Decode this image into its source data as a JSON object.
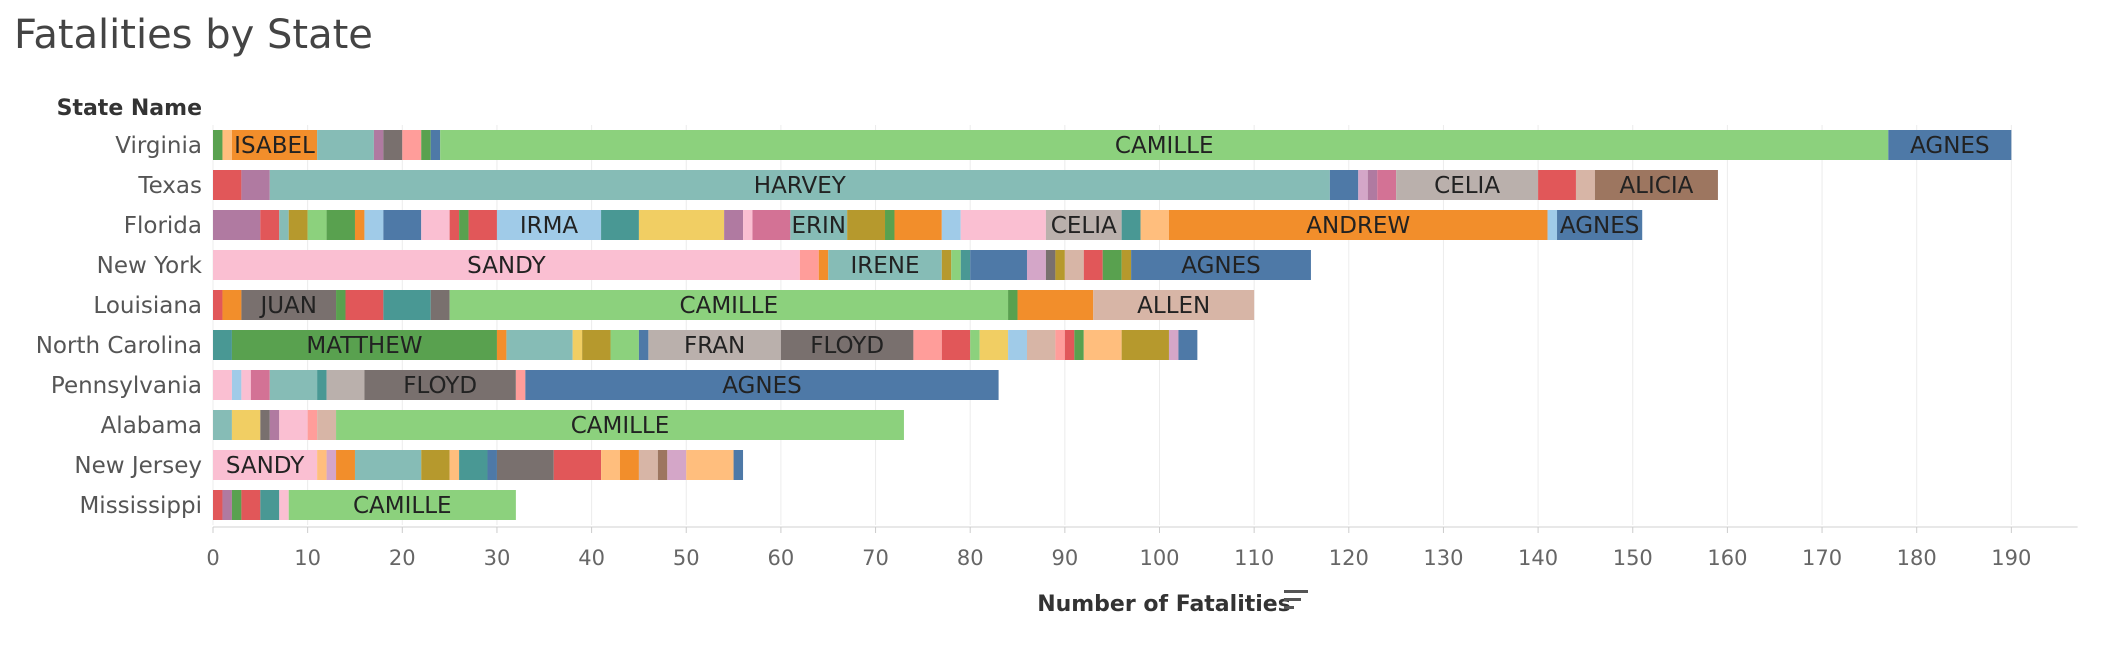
{
  "title": "Fatalities by State",
  "chart_data": {
    "type": "bar",
    "orientation": "horizontal",
    "stacked": true,
    "title": "Fatalities by State",
    "row_header": "State Name",
    "xlabel": "Number of Fatalities",
    "xlim": [
      0,
      197
    ],
    "xticks": [
      0,
      10,
      20,
      30,
      40,
      50,
      60,
      70,
      80,
      90,
      100,
      110,
      120,
      130,
      140,
      150,
      160,
      170,
      180,
      190
    ],
    "grid": true,
    "sort_icon": "sort-descending-icon",
    "rows": [
      {
        "state": "Virginia",
        "segments": [
          {
            "v": 1,
            "c": "#59a14f"
          },
          {
            "v": 1,
            "c": "#ffbe7d"
          },
          {
            "v": 9,
            "c": "#f28e2b",
            "label": "ISABEL"
          },
          {
            "v": 6,
            "c": "#86bcb6"
          },
          {
            "v": 1,
            "c": "#b07aa1"
          },
          {
            "v": 2,
            "c": "#79706e"
          },
          {
            "v": 2,
            "c": "#ff9d9a"
          },
          {
            "v": 1,
            "c": "#59a14f"
          },
          {
            "v": 1,
            "c": "#4e79a7"
          },
          {
            "v": 153,
            "c": "#8cd17d",
            "label": "CAMILLE"
          },
          {
            "v": 13,
            "c": "#4e79a7",
            "label": "AGNES"
          }
        ]
      },
      {
        "state": "Texas",
        "segments": [
          {
            "v": 3,
            "c": "#e15759"
          },
          {
            "v": 3,
            "c": "#b07aa1"
          },
          {
            "v": 112,
            "c": "#86bcb6",
            "label": "HARVEY"
          },
          {
            "v": 3,
            "c": "#4e79a7"
          },
          {
            "v": 1,
            "c": "#d4a6c8"
          },
          {
            "v": 1,
            "c": "#b07aa1"
          },
          {
            "v": 2,
            "c": "#d37295"
          },
          {
            "v": 15,
            "c": "#bab0ac",
            "label": "CELIA"
          },
          {
            "v": 4,
            "c": "#e15759"
          },
          {
            "v": 2,
            "c": "#d7b5a6"
          },
          {
            "v": 13,
            "c": "#9d7660",
            "label": "ALICIA"
          }
        ]
      },
      {
        "state": "Florida",
        "segments": [
          {
            "v": 5,
            "c": "#b07aa1"
          },
          {
            "v": 2,
            "c": "#e15759"
          },
          {
            "v": 1,
            "c": "#86bcb6"
          },
          {
            "v": 2,
            "c": "#b6992d"
          },
          {
            "v": 2,
            "c": "#8cd17d"
          },
          {
            "v": 3,
            "c": "#59a14f"
          },
          {
            "v": 1,
            "c": "#f28e2b"
          },
          {
            "v": 2,
            "c": "#a0cbe8"
          },
          {
            "v": 4,
            "c": "#4e79a7"
          },
          {
            "v": 3,
            "c": "#fabfd2"
          },
          {
            "v": 1,
            "c": "#e15759"
          },
          {
            "v": 1,
            "c": "#59a14f"
          },
          {
            "v": 3,
            "c": "#e15759"
          },
          {
            "v": 11,
            "c": "#a0cbe8",
            "label": "IRMA"
          },
          {
            "v": 4,
            "c": "#499894"
          },
          {
            "v": 9,
            "c": "#f1ce63"
          },
          {
            "v": 2,
            "c": "#b07aa1"
          },
          {
            "v": 1,
            "c": "#fabfd2"
          },
          {
            "v": 4,
            "c": "#d37295"
          },
          {
            "v": 6,
            "c": "#86bcb6",
            "label": "ERIN"
          },
          {
            "v": 4,
            "c": "#b6992d"
          },
          {
            "v": 1,
            "c": "#59a14f"
          },
          {
            "v": 5,
            "c": "#f28e2b"
          },
          {
            "v": 2,
            "c": "#a0cbe8"
          },
          {
            "v": 9,
            "c": "#fabfd2"
          },
          {
            "v": 8,
            "c": "#bab0ac",
            "label": "CELIA"
          },
          {
            "v": 2,
            "c": "#499894"
          },
          {
            "v": 3,
            "c": "#ffbe7d"
          },
          {
            "v": 40,
            "c": "#f28e2b",
            "label": "ANDREW"
          },
          {
            "v": 1,
            "c": "#a0cbe8"
          },
          {
            "v": 9,
            "c": "#4e79a7",
            "label": "AGNES"
          }
        ]
      },
      {
        "state": "New York",
        "segments": [
          {
            "v": 62,
            "c": "#fabfd2",
            "label": "SANDY"
          },
          {
            "v": 2,
            "c": "#ff9d9a"
          },
          {
            "v": 1,
            "c": "#f28e2b"
          },
          {
            "v": 12,
            "c": "#86bcb6",
            "label": "IRENE"
          },
          {
            "v": 1,
            "c": "#b6992d"
          },
          {
            "v": 1,
            "c": "#8cd17d"
          },
          {
            "v": 1,
            "c": "#499894"
          },
          {
            "v": 6,
            "c": "#4e79a7"
          },
          {
            "v": 2,
            "c": "#d4a6c8"
          },
          {
            "v": 1,
            "c": "#79706e"
          },
          {
            "v": 1,
            "c": "#b6992d"
          },
          {
            "v": 2,
            "c": "#d7b5a6"
          },
          {
            "v": 2,
            "c": "#e15759"
          },
          {
            "v": 2,
            "c": "#59a14f"
          },
          {
            "v": 1,
            "c": "#b6992d"
          },
          {
            "v": 19,
            "c": "#4e79a7",
            "label": "AGNES"
          }
        ]
      },
      {
        "state": "Louisiana",
        "segments": [
          {
            "v": 1,
            "c": "#e15759"
          },
          {
            "v": 2,
            "c": "#f28e2b"
          },
          {
            "v": 10,
            "c": "#79706e",
            "label": "JUAN"
          },
          {
            "v": 1,
            "c": "#59a14f"
          },
          {
            "v": 4,
            "c": "#e15759"
          },
          {
            "v": 5,
            "c": "#499894"
          },
          {
            "v": 2,
            "c": "#79706e"
          },
          {
            "v": 59,
            "c": "#8cd17d",
            "label": "CAMILLE"
          },
          {
            "v": 1,
            "c": "#59a14f"
          },
          {
            "v": 8,
            "c": "#f28e2b"
          },
          {
            "v": 17,
            "c": "#d7b5a6",
            "label": "ALLEN"
          }
        ]
      },
      {
        "state": "North Carolina",
        "segments": [
          {
            "v": 2,
            "c": "#499894"
          },
          {
            "v": 28,
            "c": "#59a14f",
            "label": "MATTHEW"
          },
          {
            "v": 1,
            "c": "#f28e2b"
          },
          {
            "v": 7,
            "c": "#86bcb6"
          },
          {
            "v": 1,
            "c": "#f1ce63"
          },
          {
            "v": 3,
            "c": "#b6992d"
          },
          {
            "v": 3,
            "c": "#8cd17d"
          },
          {
            "v": 1,
            "c": "#4e79a7"
          },
          {
            "v": 14,
            "c": "#bab0ac",
            "label": "FRAN"
          },
          {
            "v": 14,
            "c": "#79706e",
            "label": "FLOYD"
          },
          {
            "v": 3,
            "c": "#ff9d9a"
          },
          {
            "v": 3,
            "c": "#e15759"
          },
          {
            "v": 1,
            "c": "#8cd17d"
          },
          {
            "v": 3,
            "c": "#f1ce63"
          },
          {
            "v": 2,
            "c": "#a0cbe8"
          },
          {
            "v": 3,
            "c": "#d7b5a6"
          },
          {
            "v": 1,
            "c": "#ff9d9a"
          },
          {
            "v": 1,
            "c": "#e15759"
          },
          {
            "v": 1,
            "c": "#59a14f"
          },
          {
            "v": 4,
            "c": "#ffbe7d"
          },
          {
            "v": 5,
            "c": "#b6992d"
          },
          {
            "v": 1,
            "c": "#d4a6c8"
          },
          {
            "v": 2,
            "c": "#4e79a7"
          }
        ]
      },
      {
        "state": "Pennsylvania",
        "segments": [
          {
            "v": 2,
            "c": "#fabfd2"
          },
          {
            "v": 1,
            "c": "#a0cbe8"
          },
          {
            "v": 1,
            "c": "#fabfd2"
          },
          {
            "v": 2,
            "c": "#d37295"
          },
          {
            "v": 5,
            "c": "#86bcb6"
          },
          {
            "v": 1,
            "c": "#499894"
          },
          {
            "v": 4,
            "c": "#bab0ac"
          },
          {
            "v": 16,
            "c": "#79706e",
            "label": "FLOYD"
          },
          {
            "v": 1,
            "c": "#ff9d9a"
          },
          {
            "v": 50,
            "c": "#4e79a7",
            "label": "AGNES"
          }
        ]
      },
      {
        "state": "Alabama",
        "segments": [
          {
            "v": 2,
            "c": "#86bcb6"
          },
          {
            "v": 3,
            "c": "#f1ce63"
          },
          {
            "v": 1,
            "c": "#79706e"
          },
          {
            "v": 1,
            "c": "#b07aa1"
          },
          {
            "v": 3,
            "c": "#fabfd2"
          },
          {
            "v": 1,
            "c": "#ff9d9a"
          },
          {
            "v": 2,
            "c": "#d7b5a6"
          },
          {
            "v": 60,
            "c": "#8cd17d",
            "label": "CAMILLE"
          }
        ]
      },
      {
        "state": "New Jersey",
        "segments": [
          {
            "v": 11,
            "c": "#fabfd2",
            "label": "SANDY"
          },
          {
            "v": 1,
            "c": "#ffbe7d"
          },
          {
            "v": 1,
            "c": "#d4a6c8"
          },
          {
            "v": 2,
            "c": "#f28e2b"
          },
          {
            "v": 7,
            "c": "#86bcb6"
          },
          {
            "v": 3,
            "c": "#b6992d"
          },
          {
            "v": 1,
            "c": "#ffbe7d"
          },
          {
            "v": 3,
            "c": "#499894"
          },
          {
            "v": 1,
            "c": "#4e79a7"
          },
          {
            "v": 6,
            "c": "#79706e"
          },
          {
            "v": 5,
            "c": "#e15759"
          },
          {
            "v": 2,
            "c": "#ffbe7d"
          },
          {
            "v": 2,
            "c": "#f28e2b"
          },
          {
            "v": 2,
            "c": "#d7b5a6"
          },
          {
            "v": 1,
            "c": "#9d7660"
          },
          {
            "v": 2,
            "c": "#d4a6c8"
          },
          {
            "v": 5,
            "c": "#ffbe7d"
          },
          {
            "v": 1,
            "c": "#4e79a7"
          }
        ]
      },
      {
        "state": "Mississippi",
        "segments": [
          {
            "v": 1,
            "c": "#e15759"
          },
          {
            "v": 1,
            "c": "#b07aa1"
          },
          {
            "v": 1,
            "c": "#59a14f"
          },
          {
            "v": 2,
            "c": "#e15759"
          },
          {
            "v": 2,
            "c": "#499894"
          },
          {
            "v": 1,
            "c": "#fabfd2"
          },
          {
            "v": 24,
            "c": "#8cd17d",
            "label": "CAMILLE"
          }
        ]
      }
    ]
  }
}
